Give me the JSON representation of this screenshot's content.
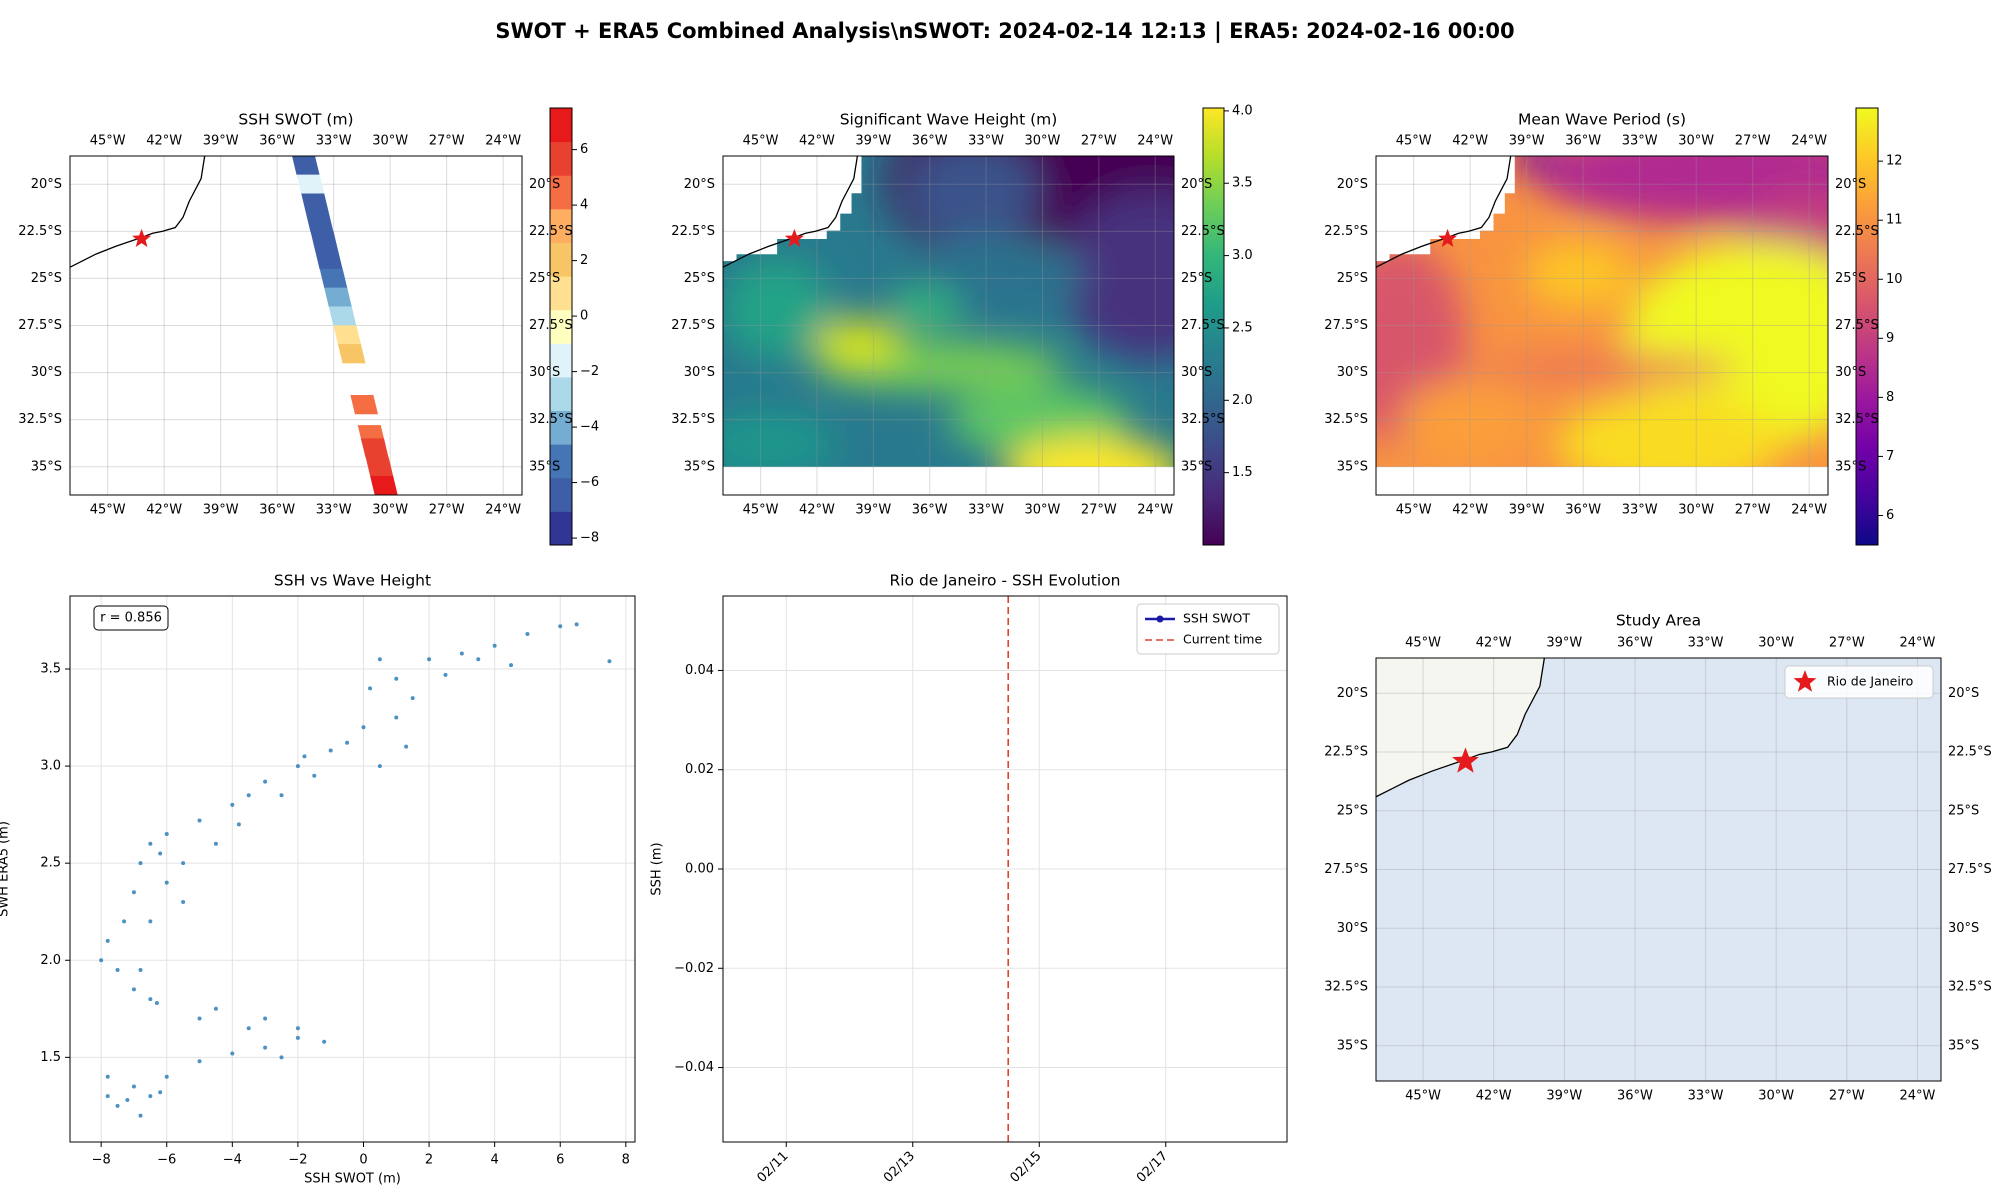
{
  "title": "SWOT + ERA5 Combined Analysis\\nSWOT: 2024-02-14 12:13 | ERA5: 2024-02-16 00:00",
  "chart_data": [
    {
      "type": "map",
      "title": "SSH SWOT (m)",
      "colormap": "RdYlBu_r",
      "xlim": [
        -47,
        -23
      ],
      "ylim": [
        -36.5,
        -18.5
      ],
      "xticks": [
        {
          "value": -45,
          "label": "45°W"
        },
        {
          "value": -42,
          "label": "42°W"
        },
        {
          "value": -39,
          "label": "39°W"
        },
        {
          "value": -36,
          "label": "36°W"
        },
        {
          "value": -33,
          "label": "33°W"
        },
        {
          "value": -30,
          "label": "30°W"
        },
        {
          "value": -27,
          "label": "27°W"
        },
        {
          "value": -24,
          "label": "24°W"
        }
      ],
      "yticks": [
        {
          "value": -20,
          "label": "20°S"
        },
        {
          "value": -22.5,
          "label": "22.5°S"
        },
        {
          "value": -25,
          "label": "25°S"
        },
        {
          "value": -27.5,
          "label": "27.5°S"
        },
        {
          "value": -30,
          "label": "30°S"
        },
        {
          "value": -32.5,
          "label": "32.5°S"
        },
        {
          "value": -35,
          "label": "35°S"
        }
      ],
      "grid": true,
      "markers": [
        {
          "lon": -43.2,
          "lat": -22.9,
          "color": "#e41a1c"
        }
      ],
      "swath": {
        "lat": [
          -19,
          -20,
          -21,
          -22,
          -23,
          -24,
          -25,
          -26,
          -27,
          -28,
          -29,
          -31.7,
          -33.3,
          -34,
          -35,
          -36
        ],
        "lon": [
          -34.48,
          -34.23,
          -33.99,
          -33.75,
          -33.5,
          -33.26,
          -33.01,
          -32.77,
          -32.53,
          -32.28,
          -32.04,
          -31.38,
          -30.99,
          -30.82,
          -30.57,
          -30.33
        ],
        "values": [
          -6,
          -2,
          -6.5,
          -7,
          -7,
          -6.5,
          -5.5,
          -4,
          -2.5,
          0.5,
          1.5,
          4,
          5,
          5.5,
          6,
          7
        ]
      },
      "colorbar": {
        "lim": [
          -8.25,
          7.5
        ],
        "discrete": true,
        "colors": [
          "#313695",
          "#3f5ea8",
          "#4575b4",
          "#74add1",
          "#abd9e9",
          "#e0f3f8",
          "#ffffbf",
          "#fee090",
          "#f7c565",
          "#fdae61",
          "#f46d43",
          "#e8412f",
          "#e8191a"
        ],
        "ticks": [
          {
            "value": -8,
            "label": "−8"
          },
          {
            "value": -6,
            "label": "−6"
          },
          {
            "value": -4,
            "label": "−4"
          },
          {
            "value": -2,
            "label": "−2"
          },
          0,
          2,
          4,
          6
        ]
      }
    },
    {
      "type": "map",
      "title": "Significant Wave Height (m)",
      "colormap": "viridis",
      "xlim": [
        -47,
        -23
      ],
      "ylim": [
        -36.5,
        -18.5
      ],
      "xticks": [
        {
          "value": -45,
          "label": "45°W"
        },
        {
          "value": -42,
          "label": "42°W"
        },
        {
          "value": -39,
          "label": "39°W"
        },
        {
          "value": -36,
          "label": "36°W"
        },
        {
          "value": -33,
          "label": "33°W"
        },
        {
          "value": -30,
          "label": "30°W"
        },
        {
          "value": -27,
          "label": "27°W"
        },
        {
          "value": -24,
          "label": "24°W"
        }
      ],
      "yticks": [
        {
          "value": -20,
          "label": "20°S"
        },
        {
          "value": -22.5,
          "label": "22.5°S"
        },
        {
          "value": -25,
          "label": "25°S"
        },
        {
          "value": -27.5,
          "label": "27.5°S"
        },
        {
          "value": -30,
          "label": "30°S"
        },
        {
          "value": -32.5,
          "label": "32.5°S"
        },
        {
          "value": -35,
          "label": "35°S"
        }
      ],
      "grid": true,
      "markers": [
        {
          "lon": -43.2,
          "lat": -22.9,
          "color": "#e41a1c"
        }
      ],
      "colorbar": {
        "lim": [
          1.0,
          4.02
        ],
        "discrete": false,
        "colors": [
          "#440154",
          "#482878",
          "#3e4989",
          "#31688e",
          "#26828e",
          "#1f9e89",
          "#35b779",
          "#6ece58",
          "#b5de2b",
          "#fde725"
        ],
        "ticks": [
          1.5,
          {
            "value": 2,
            "label": "2.0"
          },
          2.5,
          {
            "value": 3,
            "label": "3.0"
          },
          3.5,
          {
            "value": 4,
            "label": "4.0"
          }
        ]
      }
    },
    {
      "type": "map",
      "title": "Mean Wave Period (s)",
      "colormap": "plasma",
      "xlim": [
        -47,
        -23
      ],
      "ylim": [
        -36.5,
        -18.5
      ],
      "xticks": [
        {
          "value": -45,
          "label": "45°W"
        },
        {
          "value": -42,
          "label": "42°W"
        },
        {
          "value": -39,
          "label": "39°W"
        },
        {
          "value": -36,
          "label": "36°W"
        },
        {
          "value": -33,
          "label": "33°W"
        },
        {
          "value": -30,
          "label": "30°W"
        },
        {
          "value": -27,
          "label": "27°W"
        },
        {
          "value": -24,
          "label": "24°W"
        }
      ],
      "yticks": [
        {
          "value": -20,
          "label": "20°S"
        },
        {
          "value": -22.5,
          "label": "22.5°S"
        },
        {
          "value": -25,
          "label": "25°S"
        },
        {
          "value": -27.5,
          "label": "27.5°S"
        },
        {
          "value": -30,
          "label": "30°S"
        },
        {
          "value": -32.5,
          "label": "32.5°S"
        },
        {
          "value": -35,
          "label": "35°S"
        }
      ],
      "grid": true,
      "markers": [
        {
          "lon": -43.2,
          "lat": -22.9,
          "color": "#e41a1c"
        }
      ],
      "colorbar": {
        "lim": [
          5.5,
          12.9
        ],
        "discrete": false,
        "colors": [
          "#0d0887",
          "#46039f",
          "#7201a8",
          "#9c179e",
          "#bd3786",
          "#d8576b",
          "#ed7953",
          "#fb9f3a",
          "#fdca26",
          "#f0f921"
        ],
        "ticks": [
          6,
          7,
          8,
          9,
          10,
          11,
          12
        ]
      }
    },
    {
      "type": "scatter",
      "title": "SSH vs Wave Height",
      "xlabel": "SSH SWOT (m)",
      "ylabel": "SWH ERA5 (m)",
      "annotation": "r = 0.856",
      "color": "#1f77b4",
      "x": [
        -7.5,
        -6.8,
        -6.5,
        -7.8,
        -7,
        -6,
        -5,
        -4,
        -3,
        -2,
        -1.2,
        -2.5,
        -3.5,
        -5,
        -6.3,
        -7,
        -7.5,
        -8,
        -7.8,
        -7.3,
        -7,
        -6.8,
        -6.5,
        -6,
        -5,
        -4,
        -3.5,
        -3,
        -2,
        -1,
        -0.5,
        0,
        1,
        1.5,
        1,
        0.5,
        2,
        3,
        4,
        5,
        6,
        6.5,
        4.5,
        3.5,
        2.5,
        7.5,
        -5.5,
        -6,
        -6.5,
        -6.8,
        -6.5,
        -5.5,
        -4.5,
        -2.5,
        -1.5,
        0.5,
        1.3,
        0.2,
        -7.8,
        -7.2,
        -6.2,
        -4.5,
        -3,
        -2,
        -6.2,
        -3.8,
        -1.8
      ],
      "values": [
        1.25,
        1.2,
        1.3,
        1.4,
        1.35,
        1.4,
        1.48,
        1.52,
        1.55,
        1.6,
        1.58,
        1.5,
        1.65,
        1.7,
        1.78,
        1.85,
        1.95,
        2.0,
        2.1,
        2.2,
        2.35,
        2.5,
        2.6,
        2.65,
        2.72,
        2.8,
        2.85,
        2.92,
        3.0,
        3.08,
        3.12,
        3.2,
        3.25,
        3.35,
        3.45,
        3.55,
        3.55,
        3.58,
        3.62,
        3.68,
        3.72,
        3.73,
        3.52,
        3.55,
        3.47,
        3.54,
        2.3,
        2.4,
        2.2,
        1.95,
        1.8,
        2.5,
        2.6,
        2.85,
        2.95,
        3.0,
        3.1,
        3.4,
        1.3,
        1.28,
        1.32,
        1.75,
        1.7,
        1.65,
        2.55,
        2.7,
        3.05
      ],
      "xlim": [
        -8.95,
        8.28
      ],
      "ylim": [
        1.064,
        3.876
      ],
      "xticks": [
        {
          "value": -8,
          "label": "−8"
        },
        {
          "value": -6,
          "label": "−6"
        },
        {
          "value": -4,
          "label": "−4"
        },
        {
          "value": -2,
          "label": "−2"
        },
        0,
        2,
        4,
        6,
        8
      ],
      "yticks": [
        1.5,
        {
          "value": 2,
          "label": "2.0"
        },
        2.5,
        {
          "value": 3,
          "label": "3.0"
        },
        3.5
      ],
      "grid": true
    },
    {
      "type": "line",
      "title": "Rio de Janeiro - SSH Evolution",
      "ylabel": "SSH (m)",
      "series": [
        {
          "name": "SSH SWOT",
          "color": "#1a1aa6",
          "x": [],
          "values": []
        }
      ],
      "vline": {
        "name": "Current time",
        "x": "2024-02-14T12:13",
        "color": "#e0452c"
      },
      "xlim": [
        "2024-02-10T00:00",
        "2024-02-18T22:00"
      ],
      "xticks": [
        {
          "value": "2024-02-11T00:00",
          "label": "02/11"
        },
        {
          "value": "2024-02-13T00:00",
          "label": "02/13"
        },
        {
          "value": "2024-02-15T00:00",
          "label": "02/15"
        },
        {
          "value": "2024-02-17T00:00",
          "label": "02/17"
        }
      ],
      "ylim": [
        -0.055,
        0.055
      ],
      "yticks": [
        {
          "value": -0.04,
          "label": "−0.04"
        },
        {
          "value": -0.02,
          "label": "−0.02"
        },
        {
          "value": 0,
          "label": "0.00"
        },
        0.02,
        0.04
      ],
      "grid": true,
      "legend": "upper right"
    },
    {
      "type": "map",
      "title": "Study Area",
      "land_color": "#f6f6f0",
      "ocean_color": "#dde7f3",
      "xlim": [
        -47,
        -23
      ],
      "ylim": [
        -36.5,
        -18.5
      ],
      "xticks": [
        {
          "value": -45,
          "label": "45°W"
        },
        {
          "value": -42,
          "label": "42°W"
        },
        {
          "value": -39,
          "label": "39°W"
        },
        {
          "value": -36,
          "label": "36°W"
        },
        {
          "value": -33,
          "label": "33°W"
        },
        {
          "value": -30,
          "label": "30°W"
        },
        {
          "value": -27,
          "label": "27°W"
        },
        {
          "value": -24,
          "label": "24°W"
        }
      ],
      "yticks": [
        {
          "value": -20,
          "label": "20°S"
        },
        {
          "value": -22.5,
          "label": "22.5°S"
        },
        {
          "value": -25,
          "label": "25°S"
        },
        {
          "value": -27.5,
          "label": "27.5°S"
        },
        {
          "value": -30,
          "label": "30°S"
        },
        {
          "value": -32.5,
          "label": "32.5°S"
        },
        {
          "value": -35,
          "label": "35°S"
        }
      ],
      "grid": true,
      "legend": "upper right",
      "markers": [
        {
          "name": "Rio de Janeiro",
          "lon": -43.2,
          "lat": -22.9,
          "color": "#e41a1c"
        }
      ]
    }
  ]
}
